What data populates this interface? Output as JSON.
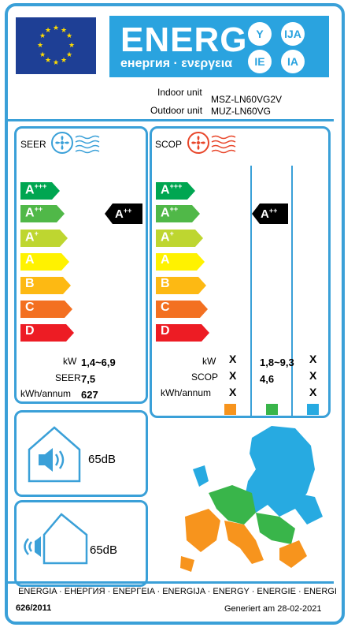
{
  "header": {
    "energy_word": "ENERG",
    "energy_sub": "енергия · ενεργεια",
    "bubbles": [
      "Y",
      "IJA",
      "IE",
      "IA"
    ]
  },
  "units": {
    "indoor_label": "Indoor unit",
    "indoor_model": "MSZ-LN60VG2V",
    "outdoor_label": "Outdoor unit",
    "outdoor_model": "MUZ-LN60VG"
  },
  "classes": [
    "A+++",
    "A++",
    "A+",
    "A",
    "B",
    "C",
    "D"
  ],
  "class_colors": [
    "#00a651",
    "#50b848",
    "#bed630",
    "#fff200",
    "#fdb913",
    "#f37021",
    "#ed1c24"
  ],
  "seer": {
    "title": "SEER",
    "rating_base": "A",
    "rating_sup": "++",
    "kw_label": "kW",
    "kw_value": "1,4~6,9",
    "seer_label": "SEER",
    "seer_value": "7,5",
    "kwh_label": "kWh/annum",
    "kwh_value": "627"
  },
  "scop": {
    "title": "SCOP",
    "rating_base": "A",
    "rating_sup": "++",
    "kw_label": "kW",
    "scop_label": "SCOP",
    "kwh_label": "kWh/annum",
    "col1": [
      "X",
      "X",
      "X"
    ],
    "col2_kw": "1,8~9,3",
    "col2_scop": "4,6",
    "col3": [
      "X",
      "X",
      "X"
    ],
    "zone_colors": [
      "#f7941d",
      "#39b54a",
      "#27aae1"
    ]
  },
  "noise": {
    "indoor_value": "65dB",
    "outdoor_value": "65dB"
  },
  "footer": {
    "languages": "ENERGIA · ЕНЕРГИЯ · ΕΝΕΡΓΕΙΑ · ENERGIJA · ENERGY · ENERGIE · ENERGI",
    "regulation": "626/2011",
    "generated": "Generiert am 28-02-2021"
  }
}
